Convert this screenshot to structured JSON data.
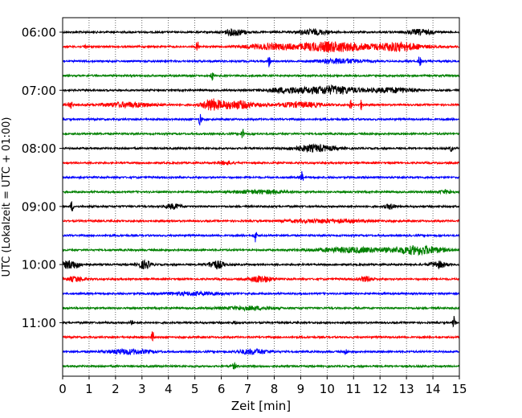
{
  "chart_data": {
    "type": "line",
    "title": "",
    "xlabel": "Zeit  [min]",
    "ylabel": "UTC (Lokalzeit = UTC + 01:00)",
    "xlim": [
      0,
      15
    ],
    "x_ticks": [
      0,
      1,
      2,
      3,
      4,
      5,
      6,
      7,
      8,
      9,
      10,
      11,
      12,
      13,
      14,
      15
    ],
    "grid": "vertical dotted",
    "legend": "none",
    "trace_colors": [
      "#000000",
      "#ff0000",
      "#0000ff",
      "#008000"
    ],
    "y_tick_labels": [
      "06:00",
      "07:00",
      "08:00",
      "09:00",
      "10:00",
      "11:00"
    ],
    "traces": [
      {
        "start": "06:00",
        "color": "#000000",
        "events": [
          {
            "t": 6.5,
            "amp": 4,
            "w": 0.4
          },
          {
            "t": 9.5,
            "amp": 3,
            "w": 0.6
          },
          {
            "t": 13.5,
            "amp": 3,
            "w": 0.5
          }
        ]
      },
      {
        "start": "06:15",
        "color": "#ff0000",
        "events": [
          {
            "t": 0.85,
            "amp": 3,
            "w": 0.05
          },
          {
            "t": 5.1,
            "amp": 6,
            "w": 0.06
          },
          {
            "t": 7.8,
            "amp": 3,
            "w": 1.0
          },
          {
            "t": 10.2,
            "amp": 6,
            "w": 1.3
          },
          {
            "t": 12.7,
            "amp": 5,
            "w": 0.9
          }
        ]
      },
      {
        "start": "06:30",
        "color": "#0000ff",
        "events": [
          {
            "t": 7.8,
            "amp": 7,
            "w": 0.05
          },
          {
            "t": 10.5,
            "amp": 3,
            "w": 0.8
          },
          {
            "t": 13.5,
            "amp": 7,
            "w": 0.05
          }
        ]
      },
      {
        "start": "06:45",
        "color": "#008000",
        "events": [
          {
            "t": 5.65,
            "amp": 5,
            "w": 0.05
          }
        ]
      },
      {
        "start": "07:00",
        "color": "#000000",
        "events": [
          {
            "t": 8.5,
            "amp": 3,
            "w": 0.8
          },
          {
            "t": 10.2,
            "amp": 5,
            "w": 1.0
          },
          {
            "t": 12.5,
            "amp": 3,
            "w": 0.8
          }
        ]
      },
      {
        "start": "07:15",
        "color": "#ff0000",
        "events": [
          {
            "t": 0.3,
            "amp": 5,
            "w": 0.08
          },
          {
            "t": 2.5,
            "amp": 3,
            "w": 1.0
          },
          {
            "t": 5.6,
            "amp": 6,
            "w": 0.3
          },
          {
            "t": 6.5,
            "amp": 5,
            "w": 0.8
          },
          {
            "t": 9.0,
            "amp": 3,
            "w": 0.9
          },
          {
            "t": 10.9,
            "amp": 6,
            "w": 0.05
          },
          {
            "t": 11.3,
            "amp": 6,
            "w": 0.05
          }
        ]
      },
      {
        "start": "07:30",
        "color": "#0000ff",
        "events": [
          {
            "t": 5.2,
            "amp": 8,
            "w": 0.05
          }
        ]
      },
      {
        "start": "07:45",
        "color": "#008000",
        "events": [
          {
            "t": 6.8,
            "amp": 7,
            "w": 0.05
          }
        ]
      },
      {
        "start": "08:00",
        "color": "#000000",
        "events": [
          {
            "t": 9.5,
            "amp": 4,
            "w": 0.8
          },
          {
            "t": 14.7,
            "amp": 4,
            "w": 0.05
          }
        ]
      },
      {
        "start": "08:15",
        "color": "#ff0000",
        "events": [
          {
            "t": 6.2,
            "amp": 2,
            "w": 0.3
          }
        ]
      },
      {
        "start": "08:30",
        "color": "#0000ff",
        "events": [
          {
            "t": 9.05,
            "amp": 7,
            "w": 0.05
          }
        ]
      },
      {
        "start": "08:45",
        "color": "#008000",
        "events": [
          {
            "t": 7.5,
            "amp": 2,
            "w": 1.0
          },
          {
            "t": 14.5,
            "amp": 2,
            "w": 0.3
          }
        ]
      },
      {
        "start": "09:00",
        "color": "#000000",
        "events": [
          {
            "t": 0.35,
            "amp": 7,
            "w": 0.05
          },
          {
            "t": 4.2,
            "amp": 3,
            "w": 0.3
          },
          {
            "t": 12.4,
            "amp": 3,
            "w": 0.2
          }
        ]
      },
      {
        "start": "09:15",
        "color": "#ff0000",
        "events": [
          {
            "t": 10.0,
            "amp": 2,
            "w": 1.5
          }
        ]
      },
      {
        "start": "09:30",
        "color": "#0000ff",
        "events": [
          {
            "t": 7.3,
            "amp": 8,
            "w": 0.05
          }
        ]
      },
      {
        "start": "09:45",
        "color": "#008000",
        "events": [
          {
            "t": 11.0,
            "amp": 3,
            "w": 1.5
          },
          {
            "t": 13.5,
            "amp": 5,
            "w": 0.9
          }
        ]
      },
      {
        "start": "10:00",
        "color": "#000000",
        "events": [
          {
            "t": 0.3,
            "amp": 5,
            "w": 0.4
          },
          {
            "t": 3.1,
            "amp": 5,
            "w": 0.25
          },
          {
            "t": 5.8,
            "amp": 5,
            "w": 0.3
          },
          {
            "t": 14.2,
            "amp": 4,
            "w": 0.3
          }
        ]
      },
      {
        "start": "10:15",
        "color": "#ff0000",
        "events": [
          {
            "t": 0.5,
            "amp": 3,
            "w": 0.3
          },
          {
            "t": 7.5,
            "amp": 4,
            "w": 0.4
          },
          {
            "t": 11.5,
            "amp": 3,
            "w": 0.3
          }
        ]
      },
      {
        "start": "10:30",
        "color": "#0000ff",
        "events": [
          {
            "t": 5.0,
            "amp": 2,
            "w": 1.0
          }
        ]
      },
      {
        "start": "10:45",
        "color": "#008000",
        "events": [
          {
            "t": 7.0,
            "amp": 2,
            "w": 1.0
          }
        ]
      },
      {
        "start": "11:00",
        "color": "#000000",
        "events": [
          {
            "t": 2.6,
            "amp": 4,
            "w": 0.05
          },
          {
            "t": 6.5,
            "amp": 3,
            "w": 0.05
          },
          {
            "t": 14.8,
            "amp": 8,
            "w": 0.05
          }
        ]
      },
      {
        "start": "11:15",
        "color": "#ff0000",
        "events": [
          {
            "t": 3.4,
            "amp": 7,
            "w": 0.05
          }
        ]
      },
      {
        "start": "11:30",
        "color": "#0000ff",
        "events": [
          {
            "t": 2.5,
            "amp": 3,
            "w": 0.8
          },
          {
            "t": 7.2,
            "amp": 3,
            "w": 0.6
          },
          {
            "t": 10.7,
            "amp": 4,
            "w": 0.05
          }
        ]
      },
      {
        "start": "11:45",
        "color": "#008000",
        "events": [
          {
            "t": 6.5,
            "amp": 3,
            "w": 0.1
          }
        ]
      }
    ]
  }
}
